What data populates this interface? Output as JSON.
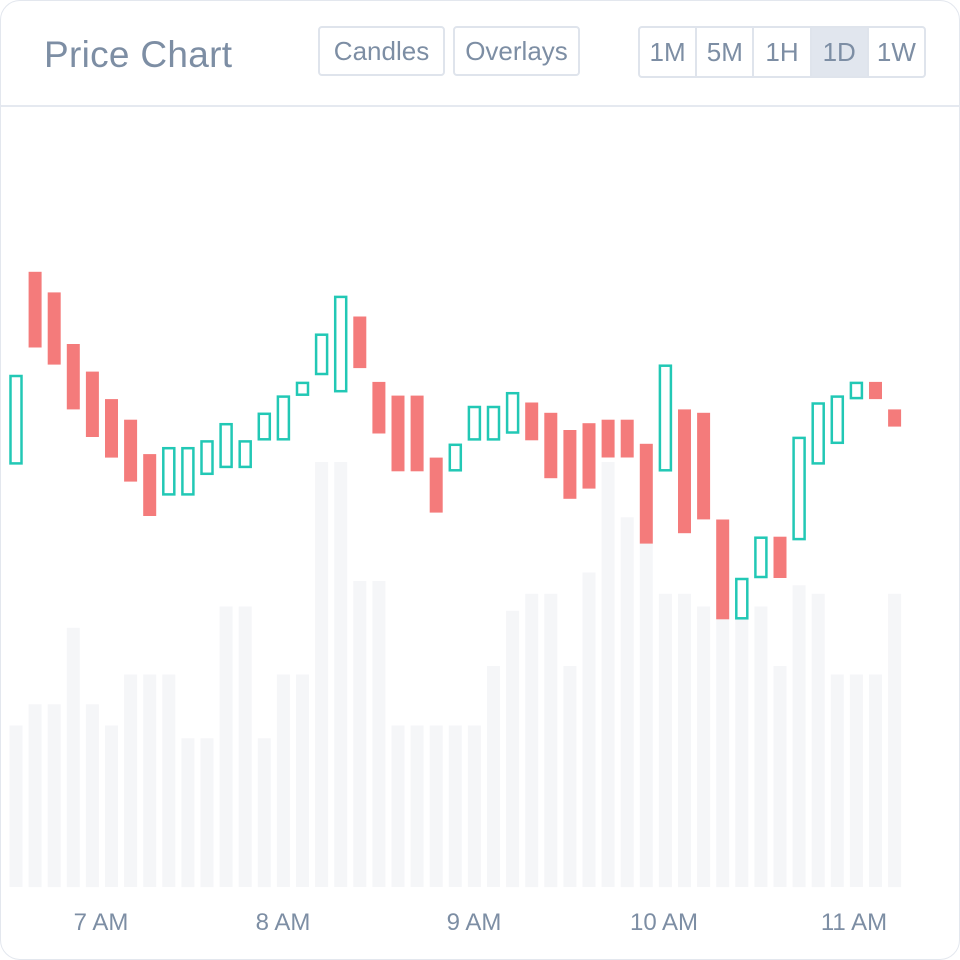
{
  "header": {
    "title": "Price Chart",
    "candles_label": "Candles",
    "overlays_label": "Overlays",
    "ranges": [
      "1M",
      "5M",
      "1H",
      "1D",
      "1W"
    ],
    "active_range": "1D"
  },
  "colors": {
    "up": "#22c8b5",
    "down": "#f47b7b",
    "volume": "#f5f6f8",
    "axis_text": "#7d8ea4"
  },
  "chart_data": {
    "type": "candlestick",
    "x_ticks": [
      "7 AM",
      "8 AM",
      "9 AM",
      "10 AM",
      "11 AM"
    ],
    "grid": false,
    "price_range": [
      0,
      100
    ],
    "volume_range": [
      0,
      100
    ],
    "candles": [
      {
        "open": 24,
        "close": 50,
        "vol": 38
      },
      {
        "open": 80,
        "close": 58,
        "vol": 43
      },
      {
        "open": 74,
        "close": 53,
        "vol": 43
      },
      {
        "open": 59,
        "close": 40,
        "vol": 61
      },
      {
        "open": 51,
        "close": 32,
        "vol": 43
      },
      {
        "open": 43,
        "close": 26,
        "vol": 38
      },
      {
        "open": 37,
        "close": 19,
        "vol": 50
      },
      {
        "open": 27,
        "close": 9,
        "vol": 50
      },
      {
        "open": 15,
        "close": 29,
        "vol": 50
      },
      {
        "open": 15,
        "close": 29,
        "vol": 35
      },
      {
        "open": 21,
        "close": 31,
        "vol": 35
      },
      {
        "open": 23,
        "close": 36,
        "vol": 66
      },
      {
        "open": 23,
        "close": 31,
        "vol": 66
      },
      {
        "open": 31,
        "close": 39,
        "vol": 35
      },
      {
        "open": 31,
        "close": 44,
        "vol": 50
      },
      {
        "open": 44,
        "close": 48,
        "vol": 50
      },
      {
        "open": 50,
        "close": 62,
        "vol": 100
      },
      {
        "open": 45,
        "close": 73,
        "vol": 100
      },
      {
        "open": 67,
        "close": 52,
        "vol": 72
      },
      {
        "open": 48,
        "close": 33,
        "vol": 72
      },
      {
        "open": 44,
        "close": 22,
        "vol": 38
      },
      {
        "open": 44,
        "close": 22,
        "vol": 38
      },
      {
        "open": 26,
        "close": 10,
        "vol": 38
      },
      {
        "open": 22,
        "close": 30,
        "vol": 38
      },
      {
        "open": 31,
        "close": 41,
        "vol": 38
      },
      {
        "open": 31,
        "close": 41,
        "vol": 52
      },
      {
        "open": 33,
        "close": 45,
        "vol": 65
      },
      {
        "open": 42,
        "close": 31,
        "vol": 69
      },
      {
        "open": 39,
        "close": 20,
        "vol": 69
      },
      {
        "open": 34,
        "close": 14,
        "vol": 52
      },
      {
        "open": 36,
        "close": 17,
        "vol": 74
      },
      {
        "open": 37,
        "close": 26,
        "vol": 100
      },
      {
        "open": 37,
        "close": 26,
        "vol": 87
      },
      {
        "open": 30,
        "close": 1,
        "vol": 81
      },
      {
        "open": 22,
        "close": 53,
        "vol": 69
      },
      {
        "open": 40,
        "close": 4,
        "vol": 69
      },
      {
        "open": 39,
        "close": 8,
        "vol": 66
      },
      {
        "open": 8,
        "close": -21,
        "vol": 75
      },
      {
        "open": -21,
        "close": -9,
        "vol": 66
      },
      {
        "open": -9,
        "close": 3,
        "vol": 66
      },
      {
        "open": 3,
        "close": -9,
        "vol": 52
      },
      {
        "open": 2,
        "close": 32,
        "vol": 71
      },
      {
        "open": 24,
        "close": 42,
        "vol": 69
      },
      {
        "open": 30,
        "close": 44,
        "vol": 50
      },
      {
        "open": 43,
        "close": 48,
        "vol": 50
      },
      {
        "open": 48,
        "close": 43,
        "vol": 50
      },
      {
        "open": 40,
        "close": 35,
        "vol": 69
      }
    ]
  }
}
